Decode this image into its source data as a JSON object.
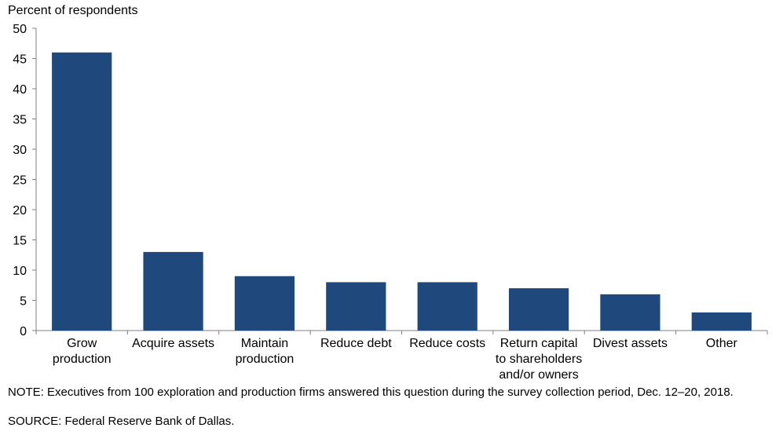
{
  "chart_data": {
    "type": "bar",
    "ylabel": "Percent of respondents",
    "ylim": [
      0,
      50
    ],
    "yticks": [
      0,
      5,
      10,
      15,
      20,
      25,
      30,
      35,
      40,
      45,
      50
    ],
    "categories": [
      "Grow production",
      "Acquire assets",
      "Maintain production",
      "Reduce debt",
      "Reduce costs",
      "Return capital to shareholders and/or owners",
      "Divest assets",
      "Other"
    ],
    "category_lines": [
      [
        "Grow",
        "production"
      ],
      [
        "Acquire assets"
      ],
      [
        "Maintain",
        "production"
      ],
      [
        "Reduce debt"
      ],
      [
        "Reduce costs"
      ],
      [
        "Return capital",
        "to shareholders",
        "and/or owners"
      ],
      [
        "Divest assets"
      ],
      [
        "Other"
      ]
    ],
    "values": [
      46,
      13,
      9,
      8,
      8,
      7,
      6,
      3
    ],
    "bar_color": "#1f497d",
    "grid": false,
    "legend": "none"
  },
  "footer": {
    "note": "NOTE:  Executives  from  100  exploration  and  production  firms  answered  this  question  during  the  survey  collection  period,  Dec.  12–20, 2018.",
    "source": "SOURCE:  Federal Reserve Bank of Dallas."
  }
}
